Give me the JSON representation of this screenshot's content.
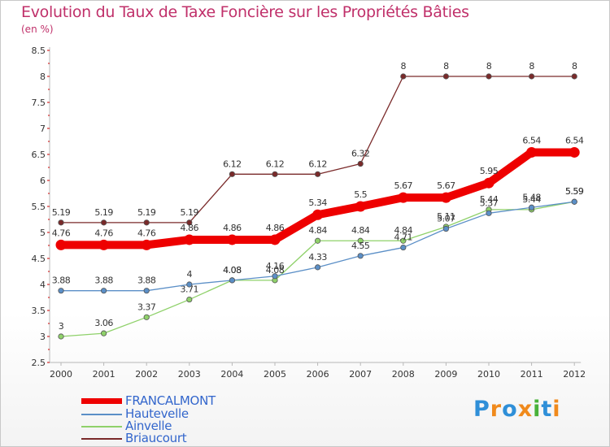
{
  "title": "Evolution du Taux de Taxe Foncière sur les Propriétés Bâties",
  "subtitle": "(en %)",
  "logo": {
    "letters": [
      "P",
      "r",
      "o",
      "x",
      "i",
      "t",
      "i"
    ],
    "colors": [
      "#2f8fd8",
      "#f08a1c",
      "#2f8fd8",
      "#f08a1c",
      "#49b23a",
      "#2f8fd8",
      "#f08a1c"
    ]
  },
  "chart_data": {
    "type": "line",
    "x": [
      "2000",
      "2001",
      "2002",
      "2003",
      "2004",
      "2005",
      "2006",
      "2007",
      "2008",
      "2009",
      "2010",
      "2011",
      "2012"
    ],
    "ylim": [
      2.5,
      8.5
    ],
    "yticks": [
      "2.5",
      "3",
      "3.5",
      "4",
      "4.5",
      "5",
      "5.5",
      "6",
      "6.5",
      "7",
      "7.5",
      "8",
      "8.5"
    ],
    "grid": false,
    "legend_position": "bottom-left",
    "series": [
      {
        "name": "FRANCALMONT",
        "color": "#ee0000",
        "values": [
          4.76,
          4.76,
          4.76,
          4.86,
          4.86,
          4.86,
          5.34,
          5.5,
          5.67,
          5.67,
          5.95,
          6.54,
          6.54
        ],
        "labels": [
          "4.76",
          "4.76",
          "4.76",
          "4.86",
          "4.86",
          "4.86",
          "5.34",
          "5.5",
          "5.67",
          "5.67",
          "5.95",
          "6.54",
          "6.54"
        ]
      },
      {
        "name": "Hautevelle",
        "color": "#5b8fc7",
        "values": [
          3.88,
          3.88,
          3.88,
          4.0,
          4.08,
          4.16,
          4.33,
          4.55,
          4.71,
          5.07,
          5.37,
          5.48,
          5.59
        ],
        "labels": [
          "3.88",
          "3.88",
          "3.88",
          "4",
          "4.08",
          "4.16",
          "4.33",
          "4.55",
          "4.71",
          "5.07",
          "5.37",
          "5.48",
          "5.59"
        ]
      },
      {
        "name": "Ainvelle",
        "color": "#8fd16a",
        "values": [
          3.0,
          3.06,
          3.37,
          3.71,
          4.08,
          4.08,
          4.84,
          4.84,
          4.84,
          5.11,
          5.44,
          5.44,
          5.59
        ],
        "labels": [
          "3",
          "3.06",
          "3.37",
          "3.71",
          "4.08",
          "4.08",
          "4.84",
          "4.84",
          "4.84",
          "5.11",
          "5.44",
          "5.44",
          "5.59"
        ]
      },
      {
        "name": "Briaucourt",
        "color": "#7a2a2a",
        "values": [
          5.19,
          5.19,
          5.19,
          5.19,
          6.12,
          6.12,
          6.12,
          6.32,
          8,
          8,
          8,
          8,
          8
        ],
        "labels": [
          "5.19",
          "5.19",
          "5.19",
          "5.19",
          "6.12",
          "6.12",
          "6.12",
          "6.32",
          "8",
          "8",
          "8",
          "8",
          "8"
        ]
      }
    ]
  }
}
